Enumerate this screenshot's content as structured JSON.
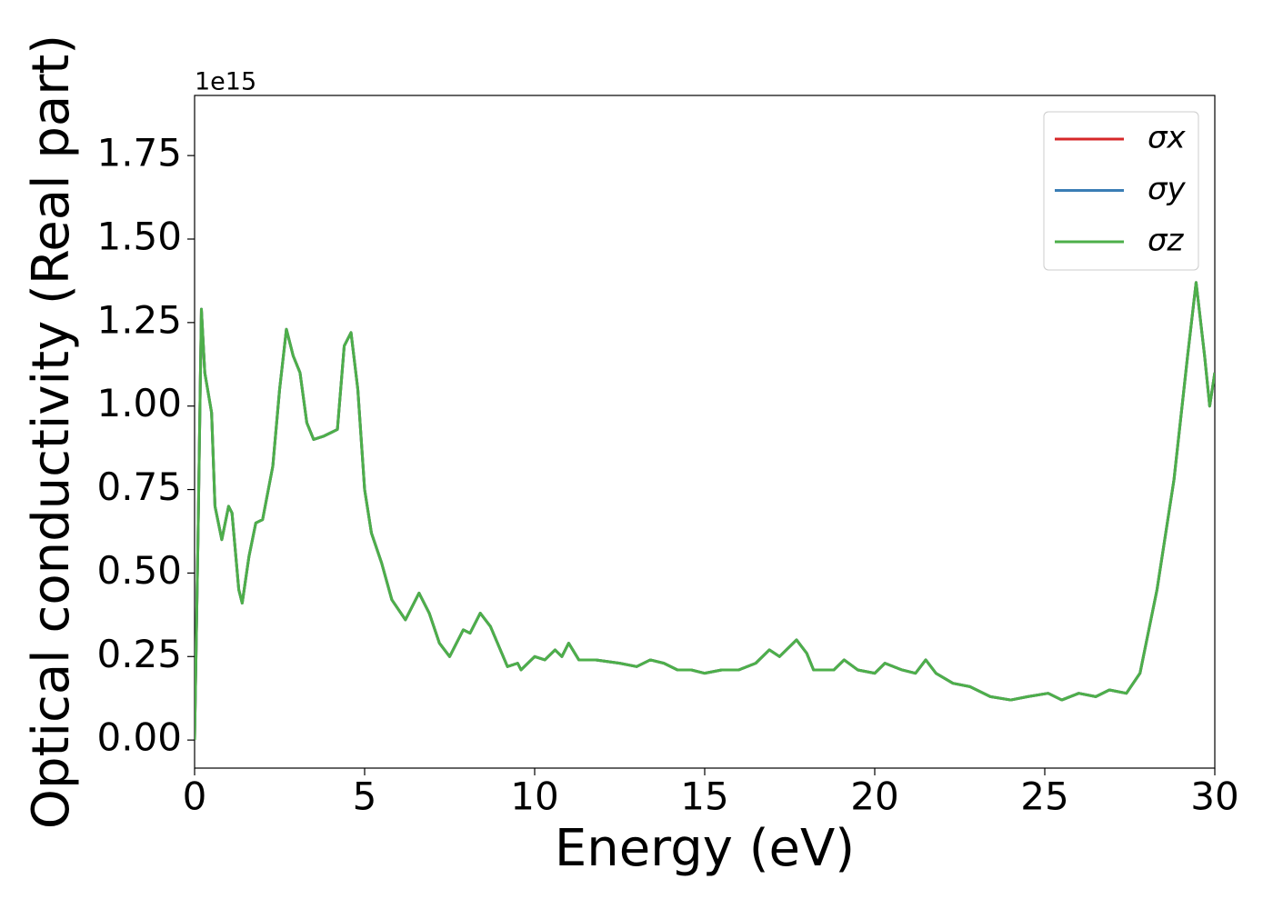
{
  "chart_data": {
    "type": "line",
    "xlabel": "Energy (eV)",
    "ylabel": "Optical conductivity (Real part)",
    "y_offset_label": "1e15",
    "x": [
      0,
      0.1,
      0.2,
      0.3,
      0.5,
      0.6,
      0.8,
      1.0,
      1.1,
      1.3,
      1.4,
      1.6,
      1.8,
      2.0,
      2.3,
      2.5,
      2.7,
      2.9,
      3.1,
      3.3,
      3.5,
      3.8,
      4.0,
      4.2,
      4.4,
      4.6,
      4.8,
      5.0,
      5.2,
      5.5,
      5.8,
      6.2,
      6.6,
      6.9,
      7.2,
      7.5,
      7.9,
      8.1,
      8.4,
      8.7,
      9.2,
      9.5,
      9.6,
      10.0,
      10.3,
      10.6,
      10.8,
      11.0,
      11.3,
      11.8,
      12.5,
      13.0,
      13.4,
      13.8,
      14.2,
      14.6,
      15.0,
      15.5,
      16.0,
      16.5,
      16.9,
      17.2,
      17.7,
      18.0,
      18.2,
      18.8,
      19.1,
      19.5,
      20.0,
      20.3,
      20.8,
      21.2,
      21.5,
      21.8,
      22.3,
      22.8,
      23.4,
      24.0,
      24.5,
      25.1,
      25.5,
      26.0,
      26.5,
      26.9,
      27.4,
      27.8,
      28.3,
      28.8,
      29.2,
      29.45,
      29.7,
      29.85,
      30.0
    ],
    "series": [
      {
        "name": "σx",
        "color": "#d62728",
        "values": [
          0.0,
          0.6,
          1.29,
          1.1,
          0.98,
          0.7,
          0.6,
          0.7,
          0.68,
          0.45,
          0.41,
          0.55,
          0.65,
          0.66,
          0.82,
          1.05,
          1.23,
          1.15,
          1.1,
          0.95,
          0.9,
          0.91,
          0.92,
          0.93,
          1.18,
          1.22,
          1.05,
          0.75,
          0.62,
          0.53,
          0.42,
          0.36,
          0.44,
          0.38,
          0.29,
          0.25,
          0.33,
          0.32,
          0.38,
          0.34,
          0.22,
          0.23,
          0.21,
          0.25,
          0.24,
          0.27,
          0.25,
          0.29,
          0.24,
          0.24,
          0.23,
          0.22,
          0.24,
          0.23,
          0.21,
          0.21,
          0.2,
          0.21,
          0.21,
          0.23,
          0.27,
          0.25,
          0.3,
          0.26,
          0.21,
          0.21,
          0.24,
          0.21,
          0.2,
          0.23,
          0.21,
          0.2,
          0.24,
          0.2,
          0.17,
          0.16,
          0.13,
          0.12,
          0.13,
          0.14,
          0.12,
          0.14,
          0.13,
          0.15,
          0.14,
          0.2,
          0.45,
          0.78,
          1.15,
          1.37,
          1.15,
          1.0,
          1.1
        ]
      },
      {
        "name": "σy",
        "color": "#3a7db5",
        "values": [
          0.0,
          0.6,
          1.29,
          1.1,
          0.98,
          0.7,
          0.6,
          0.7,
          0.68,
          0.45,
          0.41,
          0.55,
          0.65,
          0.66,
          0.82,
          1.05,
          1.23,
          1.15,
          1.1,
          0.95,
          0.9,
          0.91,
          0.92,
          0.93,
          1.18,
          1.22,
          1.05,
          0.75,
          0.62,
          0.53,
          0.42,
          0.36,
          0.44,
          0.38,
          0.29,
          0.25,
          0.33,
          0.32,
          0.38,
          0.34,
          0.22,
          0.23,
          0.21,
          0.25,
          0.24,
          0.27,
          0.25,
          0.29,
          0.24,
          0.24,
          0.23,
          0.22,
          0.24,
          0.23,
          0.21,
          0.21,
          0.2,
          0.21,
          0.21,
          0.23,
          0.27,
          0.25,
          0.3,
          0.26,
          0.21,
          0.21,
          0.24,
          0.21,
          0.2,
          0.23,
          0.21,
          0.2,
          0.24,
          0.2,
          0.17,
          0.16,
          0.13,
          0.12,
          0.13,
          0.14,
          0.12,
          0.14,
          0.13,
          0.15,
          0.14,
          0.2,
          0.45,
          0.78,
          1.15,
          1.37,
          1.15,
          1.0,
          1.1
        ]
      },
      {
        "name": "σz",
        "color": "#4daf4a",
        "values": [
          0.0,
          0.6,
          1.29,
          1.1,
          0.98,
          0.7,
          0.6,
          0.7,
          0.68,
          0.45,
          0.41,
          0.55,
          0.65,
          0.66,
          0.82,
          1.05,
          1.23,
          1.15,
          1.1,
          0.95,
          0.9,
          0.91,
          0.92,
          0.93,
          1.18,
          1.22,
          1.05,
          0.75,
          0.62,
          0.53,
          0.42,
          0.36,
          0.44,
          0.38,
          0.29,
          0.25,
          0.33,
          0.32,
          0.38,
          0.34,
          0.22,
          0.23,
          0.21,
          0.25,
          0.24,
          0.27,
          0.25,
          0.29,
          0.24,
          0.24,
          0.23,
          0.22,
          0.24,
          0.23,
          0.21,
          0.21,
          0.2,
          0.21,
          0.21,
          0.23,
          0.27,
          0.25,
          0.3,
          0.26,
          0.21,
          0.21,
          0.24,
          0.21,
          0.2,
          0.23,
          0.21,
          0.2,
          0.24,
          0.2,
          0.17,
          0.16,
          0.13,
          0.12,
          0.13,
          0.14,
          0.12,
          0.14,
          0.13,
          0.15,
          0.14,
          0.2,
          0.45,
          0.78,
          1.15,
          1.37,
          1.15,
          1.0,
          1.1
        ]
      }
    ],
    "xlim": [
      0,
      30
    ],
    "xticks": [
      0,
      5,
      10,
      15,
      20,
      25,
      30
    ],
    "ylim": [
      -0.084,
      1.93
    ],
    "yticks": [
      {
        "value": 0,
        "label": "0.00"
      },
      {
        "value": 0.25,
        "label": "0.25"
      },
      {
        "value": 0.5,
        "label": "0.50"
      },
      {
        "value": 0.75,
        "label": "0.75"
      },
      {
        "value": 1,
        "label": "1.00"
      },
      {
        "value": 1.25,
        "label": "1.25"
      },
      {
        "value": 1.5,
        "label": "1.50"
      },
      {
        "value": 1.75,
        "label": "1.75"
      }
    ],
    "legend": "upper right",
    "grid": false
  }
}
